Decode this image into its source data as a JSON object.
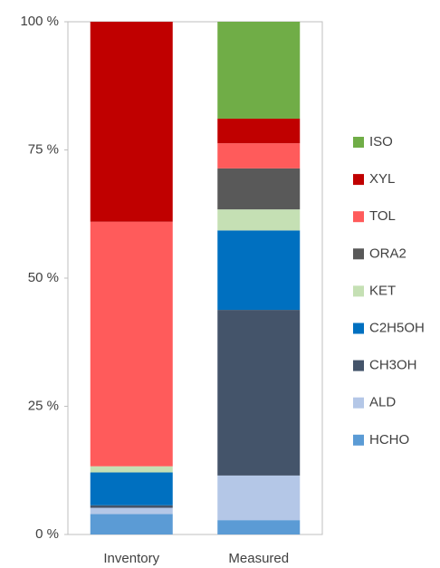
{
  "chart_data": {
    "type": "stacked_bar",
    "categories": [
      "Inventory",
      "Measured"
    ],
    "series": [
      {
        "name": "HCHO",
        "color": "#5b9bd5",
        "values": [
          4,
          2.8
        ]
      },
      {
        "name": "ALD",
        "color": "#b4c7e7",
        "values": [
          1.2,
          8.7
        ]
      },
      {
        "name": "CH3OH",
        "color": "#44546a",
        "values": [
          0.5,
          32.3
        ]
      },
      {
        "name": "C2H5OH",
        "color": "#0070c0",
        "values": [
          6.4,
          15.5
        ]
      },
      {
        "name": "KET",
        "color": "#c5e0b4",
        "values": [
          1.2,
          4.1
        ]
      },
      {
        "name": "ORA2",
        "color": "#595959",
        "values": [
          0,
          8
        ]
      },
      {
        "name": "TOL",
        "color": "#ff5b5b",
        "values": [
          47.7,
          4.9
        ]
      },
      {
        "name": "XYL",
        "color": "#c00000",
        "values": [
          39,
          4.8
        ]
      },
      {
        "name": "ISO",
        "color": "#70ad47",
        "values": [
          0,
          18.9
        ]
      }
    ],
    "ylim": [
      0,
      100
    ],
    "yticks": [
      {
        "value": 0,
        "label": "0 %"
      },
      {
        "value": 25,
        "label": "25 %"
      },
      {
        "value": 50,
        "label": "50 %"
      },
      {
        "value": 75,
        "label": "75 %"
      },
      {
        "value": 100,
        "label": "100 %"
      }
    ],
    "legend": "right"
  }
}
